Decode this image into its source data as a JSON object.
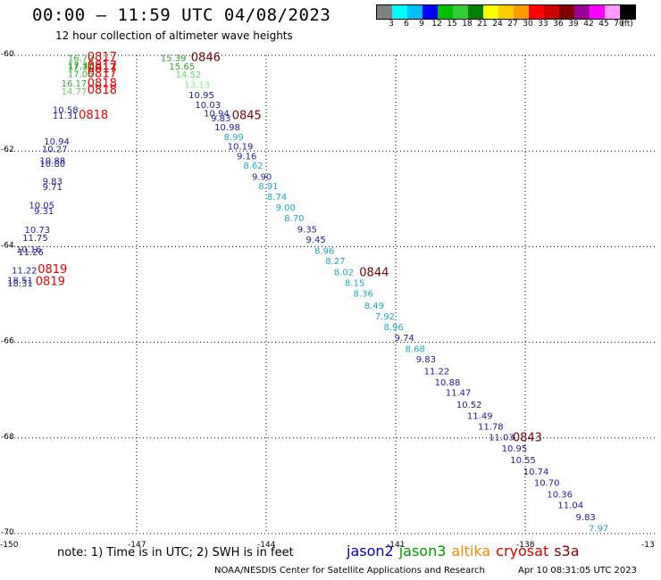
{
  "header": {
    "title": "00:00 — 11:59 UTC 04/08/2023",
    "subtitle": "12 hour collection of altimeter wave heights"
  },
  "height_legend": {
    "colors": [
      "#808080",
      "#00ffff",
      "#00bfff",
      "#0000ff",
      "#00c000",
      "#32cd32",
      "#008000",
      "#ffff00",
      "#ffcc00",
      "#ff9900",
      "#ff0000",
      "#cc0000",
      "#800000",
      "#990099",
      "#ff00ff",
      "#ff99ff",
      "#000000"
    ],
    "labels": [
      "3",
      "6",
      "9",
      "12",
      "15",
      "18",
      "21",
      "24",
      "27",
      "30",
      "33",
      "36",
      "39",
      "42",
      "45",
      "70",
      "(ft)"
    ]
  },
  "axes": {
    "y_labels": [
      "-60",
      "-62",
      "-64",
      "-66",
      "-68",
      "-70"
    ],
    "x_labels": [
      "-150",
      "-147",
      "-144",
      "-141",
      "-138",
      "-13"
    ]
  },
  "observations": [
    {
      "text": "16.79",
      "color": "#33aa33",
      "lon": -148.3,
      "lat": -60.12
    },
    {
      "text": "17.37",
      "color": "#00a000",
      "lon": -148.3,
      "lat": -60.27
    },
    {
      "text": "17.31",
      "color": "#00a000",
      "lon": -148.3,
      "lat": -60.31
    },
    {
      "text": "17.05",
      "color": "#33aa33",
      "lon": -148.3,
      "lat": -60.46
    },
    {
      "text": "16.17",
      "color": "#33aa33",
      "lon": -148.45,
      "lat": -60.65
    },
    {
      "text": "14.77",
      "color": "#66cc66",
      "lon": -148.45,
      "lat": -60.82
    },
    {
      "text": "10.58",
      "color": "#1a1aaa",
      "lon": -148.65,
      "lat": -61.2
    },
    {
      "text": "11.31",
      "color": "#1a1aaa",
      "lon": -148.65,
      "lat": -61.32
    },
    {
      "text": "10.94",
      "color": "#1a1aaa",
      "lon": -148.85,
      "lat": -61.87
    },
    {
      "text": "10.27",
      "color": "#1a1aaa",
      "lon": -148.9,
      "lat": -62.02
    },
    {
      "text": "10.88",
      "color": "#1a1aaa",
      "lon": -148.95,
      "lat": -62.27
    },
    {
      "text": "10.80",
      "color": "#1a1aaa",
      "lon": -148.95,
      "lat": -62.33
    },
    {
      "text": "9.83",
      "color": "#1a1aaa",
      "lon": -148.95,
      "lat": -62.7
    },
    {
      "text": "9.71",
      "color": "#1a1aaa",
      "lon": -148.95,
      "lat": -62.82
    },
    {
      "text": "10.05",
      "color": "#1a1aaa",
      "lon": -149.2,
      "lat": -63.2
    },
    {
      "text": "9.31",
      "color": "#1a1aaa",
      "lon": -149.15,
      "lat": -63.32
    },
    {
      "text": "10.73",
      "color": "#1a1aaa",
      "lon": -149.3,
      "lat": -63.71
    },
    {
      "text": "11.75",
      "color": "#1a1aaa",
      "lon": -149.35,
      "lat": -63.88
    },
    {
      "text": "10.16",
      "color": "#1a1aaa",
      "lon": -149.5,
      "lat": -64.12
    },
    {
      "text": "11.26",
      "color": "#1a1aaa",
      "lon": -149.45,
      "lat": -64.18
    },
    {
      "text": "11.22",
      "color": "#1a1aaa",
      "lon": -149.6,
      "lat": -64.56
    },
    {
      "text": "18.51",
      "color": "#1a1aaa",
      "lon": -149.7,
      "lat": -64.77
    },
    {
      "text": "18.31",
      "color": "#1a1aaa",
      "lon": -149.7,
      "lat": -64.83
    },
    {
      "text": "15.39",
      "color": "#339933",
      "lon": -146.15,
      "lat": -60.12
    },
    {
      "text": "15.65",
      "color": "#33aa33",
      "lon": -145.95,
      "lat": -60.3
    },
    {
      "text": "14.52",
      "color": "#66dd66",
      "lon": -145.8,
      "lat": -60.47
    },
    {
      "text": "13.13",
      "color": "#88ee88",
      "lon": -145.6,
      "lat": -60.68
    },
    {
      "text": "10.95",
      "color": "#1a1aaa",
      "lon": -145.5,
      "lat": -60.9
    },
    {
      "text": "10.03",
      "color": "#1a1aaa",
      "lon": -145.35,
      "lat": -61.1
    },
    {
      "text": "10.94",
      "color": "#1a1aaa",
      "lon": -145.15,
      "lat": -61.28
    },
    {
      "text": "9.83",
      "color": "#1a1aaa",
      "lon": -145.05,
      "lat": -61.38
    },
    {
      "text": "10.98",
      "color": "#1a1aaa",
      "lon": -144.9,
      "lat": -61.57
    },
    {
      "text": "8.99",
      "color": "#1aaacc",
      "lon": -144.75,
      "lat": -61.77
    },
    {
      "text": "10.19",
      "color": "#1a1aaa",
      "lon": -144.6,
      "lat": -61.97
    },
    {
      "text": "9.16",
      "color": "#1a1aaa",
      "lon": -144.45,
      "lat": -62.17
    },
    {
      "text": "8.62",
      "color": "#1aaacc",
      "lon": -144.3,
      "lat": -62.37
    },
    {
      "text": "9.90",
      "color": "#1a1aaa",
      "lon": -144.1,
      "lat": -62.6
    },
    {
      "text": "8.91",
      "color": "#1aaacc",
      "lon": -143.95,
      "lat": -62.8
    },
    {
      "text": "8.74",
      "color": "#1aaacc",
      "lon": -143.75,
      "lat": -63.02
    },
    {
      "text": "9.00",
      "color": "#1aaacc",
      "lon": -143.55,
      "lat": -63.25
    },
    {
      "text": "8.70",
      "color": "#1aaacc",
      "lon": -143.35,
      "lat": -63.47
    },
    {
      "text": "9.35",
      "color": "#1a1aaa",
      "lon": -143.05,
      "lat": -63.7
    },
    {
      "text": "9.45",
      "color": "#1a1aaa",
      "lon": -142.85,
      "lat": -63.92
    },
    {
      "text": "8.96",
      "color": "#1aaacc",
      "lon": -142.65,
      "lat": -64.15
    },
    {
      "text": "8.27",
      "color": "#1aaacc",
      "lon": -142.4,
      "lat": -64.37
    },
    {
      "text": "8.02",
      "color": "#1aaacc",
      "lon": -142.2,
      "lat": -64.6
    },
    {
      "text": "8.15",
      "color": "#1aaacc",
      "lon": -141.95,
      "lat": -64.82
    },
    {
      "text": "8.36",
      "color": "#1aaacc",
      "lon": -141.75,
      "lat": -65.05
    },
    {
      "text": "8.49",
      "color": "#1aaacc",
      "lon": -141.5,
      "lat": -65.3
    },
    {
      "text": "7.92",
      "color": "#1aaacc",
      "lon": -141.25,
      "lat": -65.52
    },
    {
      "text": "8.96",
      "color": "#1aaacc",
      "lon": -141.05,
      "lat": -65.75
    },
    {
      "text": "9.74",
      "color": "#1a1aaa",
      "lon": -140.8,
      "lat": -65.97
    },
    {
      "text": "8.68",
      "color": "#1aaacc",
      "lon": -140.55,
      "lat": -66.2
    },
    {
      "text": "9.83",
      "color": "#1a1aaa",
      "lon": -140.3,
      "lat": -66.42
    },
    {
      "text": "11.22",
      "color": "#1a1aaa",
      "lon": -140.05,
      "lat": -66.67
    },
    {
      "text": "10.88",
      "color": "#1a1aaa",
      "lon": -139.8,
      "lat": -66.9
    },
    {
      "text": "11.47",
      "color": "#1a1aaa",
      "lon": -139.55,
      "lat": -67.12
    },
    {
      "text": "10.52",
      "color": "#1a1aaa",
      "lon": -139.3,
      "lat": -67.37
    },
    {
      "text": "11.49",
      "color": "#1a1aaa",
      "lon": -139.05,
      "lat": -67.6
    },
    {
      "text": "11.78",
      "color": "#1a1aaa",
      "lon": -138.8,
      "lat": -67.83
    },
    {
      "text": "11.03",
      "color": "#1a1aaa",
      "lon": -138.55,
      "lat": -68.05
    },
    {
      "text": "10.95",
      "color": "#1a1aaa",
      "lon": -138.25,
      "lat": -68.28
    },
    {
      "text": "10.55",
      "color": "#1a1aaa",
      "lon": -138.05,
      "lat": -68.53
    },
    {
      "text": "10.74",
      "color": "#1a1aaa",
      "lon": -137.75,
      "lat": -68.77
    },
    {
      "text": "10.70",
      "color": "#1a1aaa",
      "lon": -137.5,
      "lat": -69.0
    },
    {
      "text": "10.36",
      "color": "#1a1aaa",
      "lon": -137.2,
      "lat": -69.24
    },
    {
      "text": "11.04",
      "color": "#1a1aaa",
      "lon": -136.95,
      "lat": -69.47
    },
    {
      "text": "9.83",
      "color": "#1a1aaa",
      "lon": -136.6,
      "lat": -69.72
    },
    {
      "text": "7.97",
      "color": "#1aaacc",
      "lon": -136.3,
      "lat": -69.95
    }
  ],
  "pass_times": [
    {
      "text": "0817",
      "color": "#ee0000",
      "lon": -147.8,
      "lat": -60.11
    },
    {
      "text": "0817",
      "color": "#ee0000",
      "lon": -147.8,
      "lat": -60.3
    },
    {
      "text": "0817",
      "color": "#ee0000",
      "lon": -147.8,
      "lat": -60.35
    },
    {
      "text": "0817",
      "color": "#ee0000",
      "lon": -147.8,
      "lat": -60.46
    },
    {
      "text": "0818",
      "color": "#ee0000",
      "lon": -147.8,
      "lat": -60.66
    },
    {
      "text": "0818",
      "color": "#ee0000",
      "lon": -147.8,
      "lat": -60.8
    },
    {
      "text": "0818",
      "color": "#ee0000",
      "lon": -148.0,
      "lat": -61.32
    },
    {
      "text": "0819",
      "color": "#ee0000",
      "lon": -148.95,
      "lat": -64.55
    },
    {
      "text": "0819",
      "color": "#ee0000",
      "lon": -149.0,
      "lat": -64.8
    },
    {
      "text": "0846",
      "color": "#7a0000",
      "lon": -145.4,
      "lat": -60.12
    },
    {
      "text": "0845",
      "color": "#7a0000",
      "lon": -144.45,
      "lat": -61.33
    },
    {
      "text": "0844",
      "color": "#7a0000",
      "lon": -141.5,
      "lat": -64.62
    },
    {
      "text": "0843",
      "color": "#7a0000",
      "lon": -137.95,
      "lat": -68.07
    }
  ],
  "footer": {
    "note": "note: 1) Time is in UTC; 2) SWH is in feet",
    "satellites": [
      {
        "name": "jason2",
        "color": "#0000cc"
      },
      {
        "name": "jason3",
        "color": "#009900"
      },
      {
        "name": "altika",
        "color": "#ff8800"
      },
      {
        "name": "cryosat",
        "color": "#dd0000"
      },
      {
        "name": "s3a",
        "color": "#880000"
      }
    ],
    "credit": "NOAA/NESDIS Center for Satellite Applications and Research",
    "generated": "Apr 10 08:31:05 UTC 2023"
  }
}
